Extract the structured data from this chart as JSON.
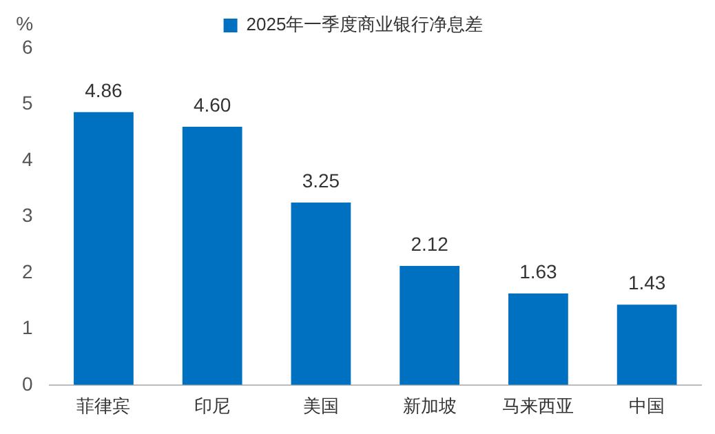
{
  "chart_data": {
    "type": "bar",
    "ylabel": "%",
    "categories": [
      "菲律宾",
      "印尼",
      "美国",
      "新加坡",
      "马来西亚",
      "中国"
    ],
    "series": [
      {
        "name": "2025年一季度商业银行净息差",
        "color": "#0070c0",
        "values": [
          4.86,
          4.6,
          3.25,
          2.12,
          1.63,
          1.43
        ]
      }
    ],
    "value_labels": [
      "4.86",
      "4.60",
      "3.25",
      "2.12",
      "1.63",
      "1.43"
    ],
    "ylim": [
      0,
      6
    ],
    "yticks": [
      0,
      1,
      2,
      3,
      4,
      5,
      6
    ],
    "grid": false,
    "legend": "top"
  }
}
